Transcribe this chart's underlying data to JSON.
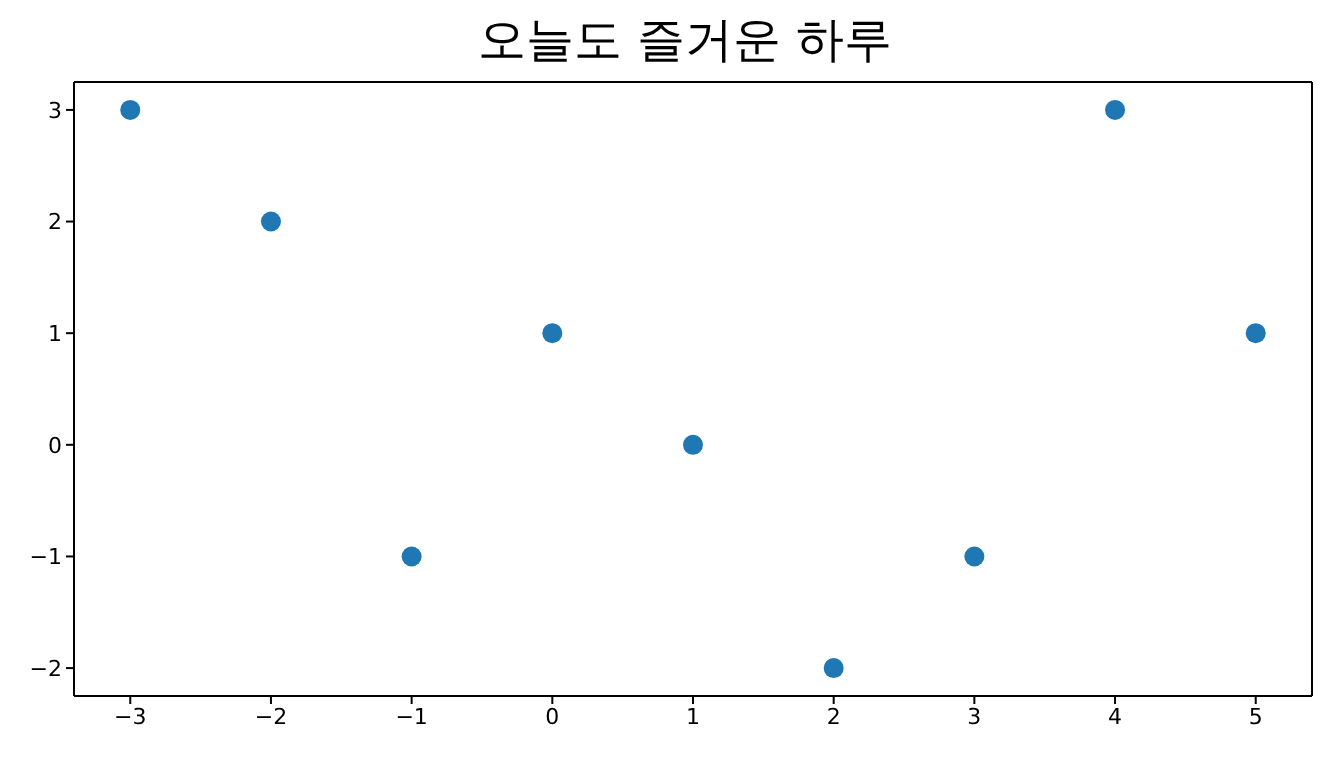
{
  "chart_data": {
    "type": "scatter",
    "title": "오늘도 즐거운 하루",
    "x": [
      -3,
      -2,
      -1,
      0,
      1,
      2,
      3,
      4,
      5
    ],
    "values": [
      3,
      2,
      -1,
      1,
      0,
      -2,
      -1,
      3,
      1
    ],
    "color": "#1f77b4",
    "marker": "circle",
    "xlim": [
      -3.4,
      5.4
    ],
    "xticks": [
      -3,
      -2,
      -1,
      0,
      1,
      2,
      3,
      4,
      5
    ],
    "ylim": [
      -2.25,
      3.25
    ],
    "yticks": [
      -2,
      -1,
      0,
      1,
      2,
      3
    ],
    "grid": false
  }
}
